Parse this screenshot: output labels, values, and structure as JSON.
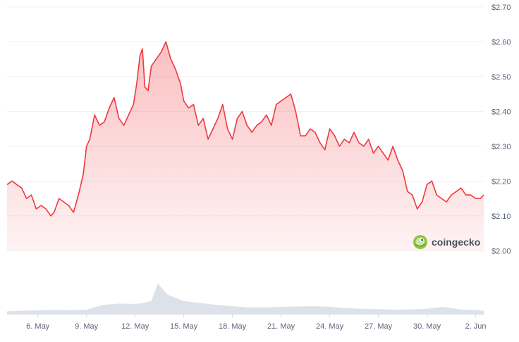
{
  "chart_data": {
    "type": "area",
    "title": "",
    "xlabel": "",
    "ylabel": "",
    "ylim": [
      1.94,
      2.72
    ],
    "y_ticks": [
      "$2.00",
      "$2.10",
      "$2.20",
      "$2.30",
      "$2.40",
      "$2.50",
      "$2.60",
      "$2.70"
    ],
    "y_tick_values": [
      2.0,
      2.1,
      2.2,
      2.3,
      2.4,
      2.5,
      2.6,
      2.7
    ],
    "x_ticks": [
      "6. May",
      "9. May",
      "12. May",
      "15. May",
      "18. May",
      "21. May",
      "24. May",
      "27. May",
      "30. May",
      "2. Jun"
    ],
    "x_tick_days": [
      6,
      9,
      12,
      15,
      18,
      21,
      24,
      27,
      30,
      33
    ],
    "x_range_days": [
      4.1,
      33.5
    ],
    "grid": true,
    "line_color": "#f0383e",
    "fill_color": "#f0383e",
    "volume_color": "#cfd5df",
    "series": [
      {
        "x": [
          4.1,
          4.4,
          4.7,
          5.0,
          5.3,
          5.6,
          5.9,
          6.2,
          6.5,
          6.8,
          7.0,
          7.3,
          7.6,
          7.9,
          8.2,
          8.5,
          8.8,
          9.0,
          9.2,
          9.5,
          9.8,
          10.1,
          10.4,
          10.7,
          11.0,
          11.3,
          11.6,
          11.9,
          12.1,
          12.3,
          12.45,
          12.6,
          12.8,
          13.0,
          13.3,
          13.6,
          13.9,
          14.2,
          14.5,
          14.8,
          15.0,
          15.3,
          15.6,
          15.9,
          16.2,
          16.5,
          16.8,
          17.1,
          17.4,
          17.7,
          18.0,
          18.3,
          18.6,
          18.9,
          19.2,
          19.5,
          19.8,
          20.1,
          20.4,
          20.7,
          21.0,
          21.3,
          21.6,
          21.9,
          22.2,
          22.5,
          22.8,
          23.1,
          23.4,
          23.7,
          24.0,
          24.3,
          24.6,
          24.9,
          25.2,
          25.5,
          25.8,
          26.1,
          26.4,
          26.7,
          27.0,
          27.3,
          27.6,
          27.9,
          28.2,
          28.5,
          28.8,
          29.1,
          29.4,
          29.7,
          30.0,
          30.3,
          30.6,
          30.9,
          31.2,
          31.5,
          31.8,
          32.1,
          32.4,
          32.7,
          33.0,
          33.3,
          33.5
        ],
        "values": [
          2.19,
          2.2,
          2.19,
          2.18,
          2.15,
          2.16,
          2.12,
          2.13,
          2.12,
          2.1,
          2.11,
          2.15,
          2.14,
          2.13,
          2.11,
          2.16,
          2.22,
          2.3,
          2.32,
          2.39,
          2.36,
          2.37,
          2.41,
          2.44,
          2.38,
          2.36,
          2.39,
          2.42,
          2.48,
          2.56,
          2.58,
          2.47,
          2.46,
          2.53,
          2.55,
          2.57,
          2.6,
          2.55,
          2.52,
          2.48,
          2.43,
          2.41,
          2.42,
          2.36,
          2.38,
          2.32,
          2.35,
          2.38,
          2.42,
          2.35,
          2.32,
          2.38,
          2.4,
          2.36,
          2.34,
          2.36,
          2.37,
          2.39,
          2.36,
          2.42,
          2.43,
          2.44,
          2.45,
          2.4,
          2.33,
          2.33,
          2.35,
          2.34,
          2.31,
          2.29,
          2.35,
          2.33,
          2.3,
          2.32,
          2.31,
          2.34,
          2.31,
          2.3,
          2.32,
          2.28,
          2.3,
          2.28,
          2.26,
          2.3,
          2.26,
          2.23,
          2.17,
          2.16,
          2.12,
          2.14,
          2.19,
          2.2,
          2.16,
          2.15,
          2.14,
          2.16,
          2.17,
          2.18,
          2.16,
          2.16,
          2.15,
          2.15,
          2.16
        ]
      }
    ],
    "volume": {
      "x": [
        4.1,
        5.0,
        6.0,
        7.0,
        8.0,
        9.0,
        10.0,
        11.0,
        12.0,
        12.5,
        13.0,
        13.4,
        14.0,
        15.0,
        16.0,
        17.0,
        18.0,
        19.0,
        20.0,
        21.0,
        22.0,
        23.0,
        24.0,
        25.0,
        26.0,
        27.0,
        28.0,
        29.0,
        30.0,
        31.0,
        32.0,
        33.0,
        33.5
      ],
      "values": [
        0.1,
        0.12,
        0.13,
        0.14,
        0.13,
        0.15,
        0.3,
        0.34,
        0.33,
        0.36,
        0.42,
        0.96,
        0.62,
        0.42,
        0.36,
        0.3,
        0.26,
        0.22,
        0.22,
        0.24,
        0.25,
        0.26,
        0.24,
        0.2,
        0.18,
        0.17,
        0.15,
        0.16,
        0.18,
        0.24,
        0.16,
        0.14,
        0.12
      ]
    }
  },
  "watermark": {
    "text": "coingecko",
    "icon": "gecko-logo-icon"
  }
}
